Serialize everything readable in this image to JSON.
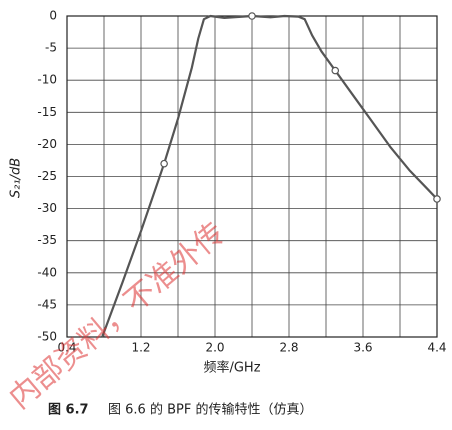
{
  "chart_data": {
    "type": "line",
    "x_label": "频率/GHz",
    "y_label": "S₂₁/dB",
    "figure_number": "图 6.7",
    "caption": "图 6.6 的 BPF 的传输特性（仿真）",
    "watermark": "内部资料，不准外传",
    "xlim": [
      0.4,
      4.4
    ],
    "ylim": [
      -50,
      0
    ],
    "xticks": [
      0.4,
      1.2,
      {
        "value": 2,
        "label": "2.0"
      },
      2.8,
      3.6,
      4.4
    ],
    "xgrid": [
      0.8,
      1.6,
      2.4,
      3.2,
      4
    ],
    "yticks": [
      0,
      -5,
      -10,
      -15,
      -20,
      -25,
      -30,
      -35,
      -40,
      -45,
      -50
    ],
    "grid": true,
    "series": [
      {
        "color": "#555555",
        "x": [
          0.78,
          1.0,
          1.2,
          1.45,
          1.6,
          1.75,
          1.82,
          1.88,
          1.95,
          2.1,
          2.4,
          2.6,
          2.75,
          2.9,
          2.97,
          3.05,
          3.15,
          3.3,
          3.5,
          3.7,
          3.9,
          4.1,
          4.3,
          4.4
        ],
        "values": [
          -50,
          -41.5,
          -33.5,
          -23,
          -16,
          -8,
          -3.5,
          -0.5,
          0,
          -0.3,
          0,
          -0.2,
          0,
          -0.1,
          -0.5,
          -3,
          -5.5,
          -8.5,
          -12.5,
          -16.5,
          -20.5,
          -24,
          -27,
          -28.5
        ]
      },
      {
        "color": "#555555",
        "marker": "open-circle",
        "x": [
          1.45,
          2.4,
          3.3,
          4.4
        ],
        "values": [
          -23,
          0,
          -8.5,
          -28.5
        ]
      }
    ]
  }
}
